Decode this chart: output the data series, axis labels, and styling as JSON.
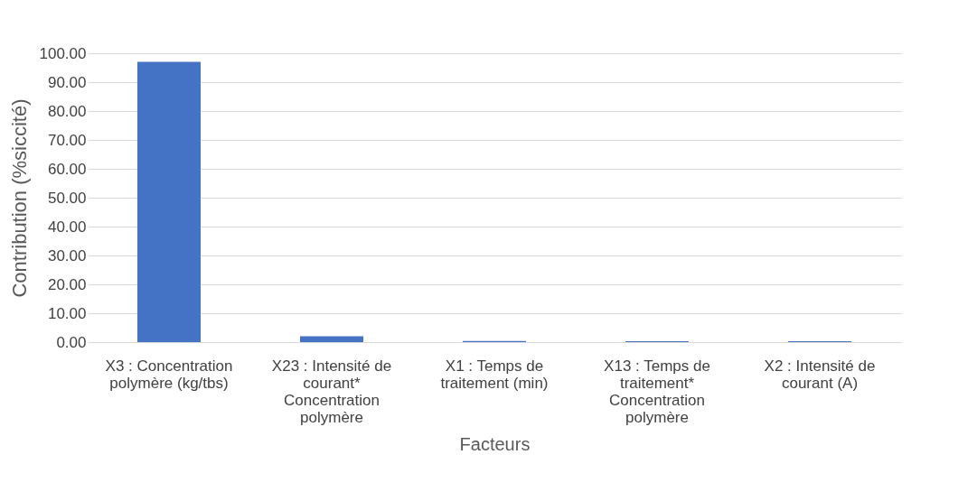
{
  "chart_data": {
    "type": "bar",
    "xlabel": "Facteurs",
    "ylabel": "Contribution (%siccité)",
    "categories": [
      "X3 : Concentration polymère (kg/tbs)",
      "X23 : Intensité de courant* Concentration polymère",
      "X1 : Temps de traitement (min)",
      "X13 : Temps de traitement* Concentration polymère",
      "X2 : Intensité de courant (A)"
    ],
    "values": [
      97,
      2,
      0.4,
      0.3,
      0.3
    ],
    "color": "#4472c4",
    "ylim": [
      0,
      100
    ],
    "yticks": [
      {
        "value": 0,
        "label": "0.00"
      },
      {
        "value": 10,
        "label": "10.00"
      },
      {
        "value": 20,
        "label": "20.00"
      },
      {
        "value": 30,
        "label": "30.00"
      },
      {
        "value": 40,
        "label": "40.00"
      },
      {
        "value": 50,
        "label": "50.00"
      },
      {
        "value": 60,
        "label": "60.00"
      },
      {
        "value": 70,
        "label": "70.00"
      },
      {
        "value": 80,
        "label": "80.00"
      },
      {
        "value": 90,
        "label": "90.00"
      },
      {
        "value": 100,
        "label": "100.00"
      }
    ],
    "grid": "y"
  }
}
